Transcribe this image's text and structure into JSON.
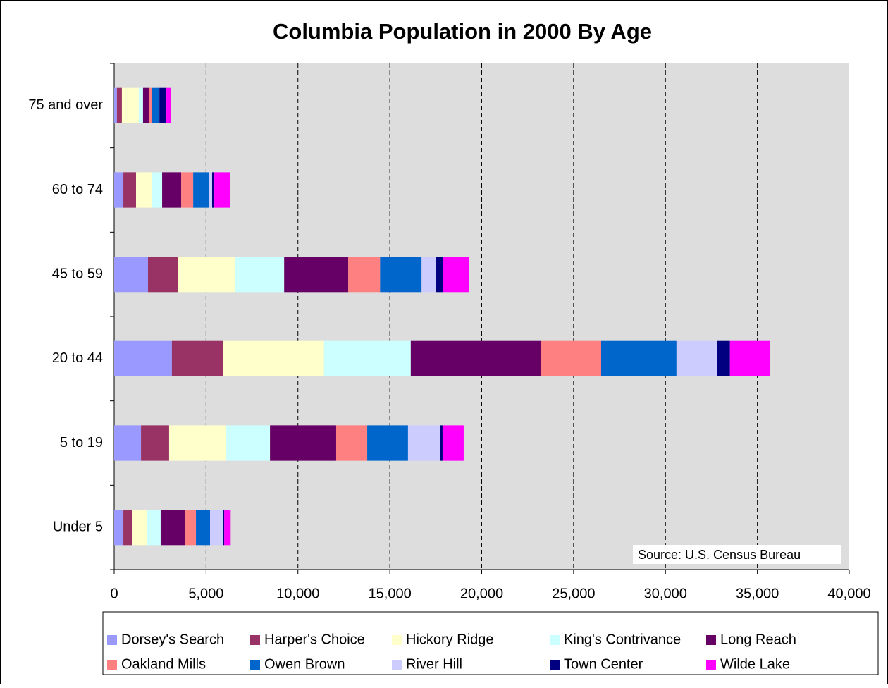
{
  "chart_data": {
    "type": "stacked-barh",
    "title": "Columbia Population in 2000 By Age",
    "annotation": "Source: U.S. Census Bureau",
    "categories": [
      "Under 5",
      "5 to 19",
      "20 to 44",
      "45 to 59",
      "60 to 74",
      "75 and over"
    ],
    "series": [
      {
        "name": "Dorsey's Search",
        "color": "#9999ff",
        "values": [
          500,
          1460,
          3140,
          1840,
          500,
          150
        ]
      },
      {
        "name": "Harper's Choice",
        "color": "#993366",
        "values": [
          460,
          1530,
          2800,
          1650,
          690,
          270
        ]
      },
      {
        "name": "Hickory Ridge",
        "color": "#ffffcc",
        "values": [
          840,
          3110,
          5480,
          3110,
          880,
          920
        ]
      },
      {
        "name": "King's Contrivance",
        "color": "#ccffff",
        "values": [
          730,
          2380,
          4720,
          2650,
          540,
          230
        ]
      },
      {
        "name": "Long Reach",
        "color": "#660066",
        "values": [
          1340,
          3600,
          7100,
          3490,
          1040,
          310
        ]
      },
      {
        "name": "Oakland Mills",
        "color": "#ff8080",
        "values": [
          580,
          1690,
          3260,
          1730,
          650,
          190
        ]
      },
      {
        "name": "Owen Brown",
        "color": "#0066cc",
        "values": [
          770,
          2220,
          4100,
          2260,
          840,
          350
        ]
      },
      {
        "name": "River Hill",
        "color": "#ccccff",
        "values": [
          690,
          1730,
          2220,
          770,
          190,
          40
        ]
      },
      {
        "name": "Town Center",
        "color": "#000080",
        "values": [
          80,
          150,
          690,
          380,
          120,
          380
        ]
      },
      {
        "name": "Wilde Lake",
        "color": "#ff00ff",
        "values": [
          350,
          1150,
          2190,
          1420,
          840,
          230
        ]
      }
    ],
    "xlim": [
      0,
      40000
    ],
    "xticks": [
      0,
      {
        "value": 5000,
        "label": "5,000"
      },
      {
        "value": 10000,
        "label": "10,000"
      },
      {
        "value": 15000,
        "label": "15,000"
      },
      {
        "value": 20000,
        "label": "20,000"
      },
      {
        "value": 25000,
        "label": "25,000"
      },
      {
        "value": 30000,
        "label": "30,000"
      },
      {
        "value": 35000,
        "label": "35,000"
      },
      {
        "value": 40000,
        "label": "40,000"
      }
    ],
    "grid": true,
    "legend": "bottom"
  }
}
